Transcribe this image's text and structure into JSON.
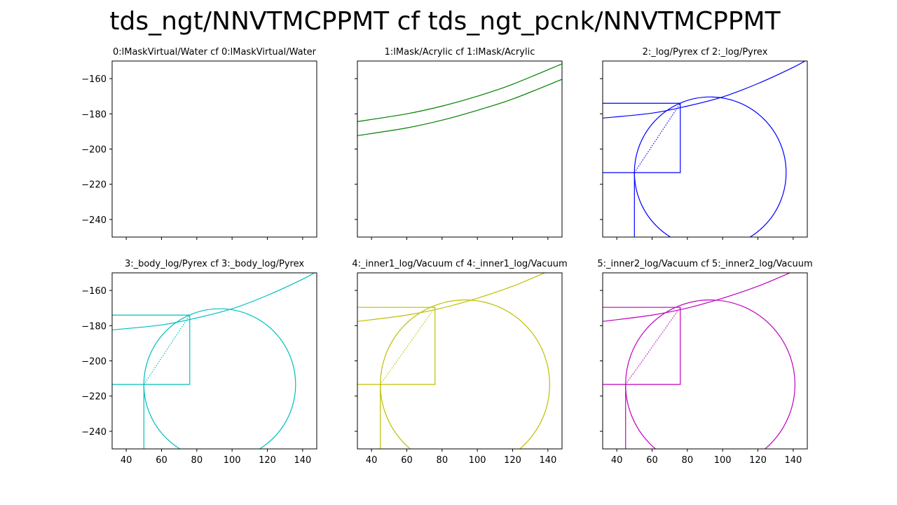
{
  "figure": {
    "suptitle": "tds_ngt/NNVTMCPPMT cf tds_ngt_pcnk/NNVTMCPPMT"
  },
  "axes_common": {
    "xlim": [
      32,
      148
    ],
    "ylim": [
      -250,
      -150
    ],
    "xticks": [
      40,
      60,
      80,
      100,
      120,
      140
    ],
    "yticks": [
      -160,
      -180,
      -200,
      -220,
      -240
    ],
    "xtick_labels": [
      "40",
      "60",
      "80",
      "100",
      "120",
      "140"
    ],
    "ytick_labels": [
      "−160",
      "−180",
      "−200",
      "−220",
      "−240"
    ]
  },
  "chart_data": [
    {
      "type": "line",
      "title": "0:lMaskVirtual/Water cf 0:lMaskVirtual/Water",
      "color": "#008000",
      "xlim": [
        32,
        148
      ],
      "ylim": [
        -250,
        -150
      ],
      "show_xtick_labels": false,
      "show_ytick_labels": true,
      "series": []
    },
    {
      "type": "line",
      "title": "1:lMask/Acrylic cf 1:lMask/Acrylic",
      "color": "#008000",
      "xlim": [
        32,
        148
      ],
      "ylim": [
        -250,
        -150
      ],
      "show_xtick_labels": false,
      "show_ytick_labels": false,
      "series": [
        {
          "x": [
            32,
            60,
            80,
            100,
            120,
            148
          ],
          "y": [
            -184.4,
            -180.0,
            -175.6,
            -170.0,
            -163.2,
            -151.6
          ]
        },
        {
          "x": [
            32,
            60,
            80,
            100,
            120,
            148
          ],
          "y": [
            -192.4,
            -188.0,
            -183.6,
            -178.0,
            -171.6,
            -160.4
          ]
        }
      ]
    },
    {
      "type": "line",
      "title": "2:_log/Pyrex cf 2:_log/Pyrex",
      "color": "#0000ff",
      "xlim": [
        32,
        148
      ],
      "ylim": [
        -250,
        -150
      ],
      "show_xtick_labels": false,
      "show_ytick_labels": false,
      "series": [
        {
          "x": [
            32,
            60,
            80,
            100,
            120,
            140,
            148
          ],
          "y": [
            -182.4,
            -179.6,
            -175.6,
            -170.4,
            -162.8,
            -153.6,
            -149.2
          ]
        },
        {
          "type": "circle",
          "cx": 93,
          "cy": -213.4,
          "r": 43
        },
        {
          "x": [
            32,
            76,
            76,
            32
          ],
          "y": [
            -174.0,
            -174.0,
            -213.4,
            -213.4
          ]
        },
        {
          "x": [
            50,
            50
          ],
          "y": [
            -213.4,
            -250
          ]
        },
        {
          "x": [
            50,
            76
          ],
          "y": [
            -213.4,
            -174.0
          ],
          "style": "dotted"
        }
      ]
    },
    {
      "type": "line",
      "title": "3:_body_log/Pyrex cf 3:_body_log/Pyrex",
      "color": "#00bfbf",
      "xlim": [
        32,
        148
      ],
      "ylim": [
        -250,
        -150
      ],
      "show_xtick_labels": true,
      "show_ytick_labels": true,
      "series": [
        {
          "x": [
            32,
            60,
            80,
            100,
            120,
            140,
            148
          ],
          "y": [
            -182.4,
            -179.6,
            -175.6,
            -170.4,
            -162.8,
            -153.6,
            -149.2
          ]
        },
        {
          "type": "circle",
          "cx": 93,
          "cy": -213.4,
          "r": 43
        },
        {
          "x": [
            32,
            76,
            76,
            32
          ],
          "y": [
            -174.0,
            -174.0,
            -213.4,
            -213.4
          ]
        },
        {
          "x": [
            50,
            50
          ],
          "y": [
            -213.4,
            -250
          ]
        },
        {
          "x": [
            50,
            76
          ],
          "y": [
            -213.4,
            -174.0
          ],
          "style": "dotted"
        }
      ]
    },
    {
      "type": "line",
      "title": "4:_inner1_log/Vacuum cf 4:_inner1_log/Vacuum",
      "color": "#bfbf00",
      "xlim": [
        32,
        148
      ],
      "ylim": [
        -250,
        -150
      ],
      "show_xtick_labels": true,
      "show_ytick_labels": false,
      "series": [
        {
          "x": [
            32,
            60,
            80,
            100,
            120,
            140
          ],
          "y": [
            -177.6,
            -174.0,
            -170.0,
            -164.4,
            -157.6,
            -149.2
          ]
        },
        {
          "type": "circle",
          "cx": 93,
          "cy": -213.4,
          "r": 48
        },
        {
          "x": [
            32,
            76,
            76,
            32
          ],
          "y": [
            -169.6,
            -169.6,
            -213.4,
            -213.4
          ]
        },
        {
          "x": [
            45,
            45
          ],
          "y": [
            -213.4,
            -250
          ]
        },
        {
          "x": [
            45,
            76
          ],
          "y": [
            -213.4,
            -169.6
          ],
          "style": "dotted"
        }
      ]
    },
    {
      "type": "line",
      "title": "5:_inner2_log/Vacuum cf 5:_inner2_log/Vacuum",
      "color": "#bf00bf",
      "xlim": [
        32,
        148
      ],
      "ylim": [
        -250,
        -150
      ],
      "show_xtick_labels": true,
      "show_ytick_labels": false,
      "series": [
        {
          "x": [
            32,
            60,
            80,
            100,
            120,
            140
          ],
          "y": [
            -177.6,
            -174.0,
            -170.0,
            -164.4,
            -157.6,
            -149.2
          ]
        },
        {
          "type": "circle",
          "cx": 93,
          "cy": -213.4,
          "r": 48
        },
        {
          "x": [
            32,
            76,
            76,
            32
          ],
          "y": [
            -169.6,
            -169.6,
            -213.4,
            -213.4
          ]
        },
        {
          "x": [
            45,
            45
          ],
          "y": [
            -213.4,
            -250
          ]
        },
        {
          "x": [
            45,
            76
          ],
          "y": [
            -213.4,
            -169.6
          ],
          "style": "dotted"
        }
      ]
    }
  ]
}
